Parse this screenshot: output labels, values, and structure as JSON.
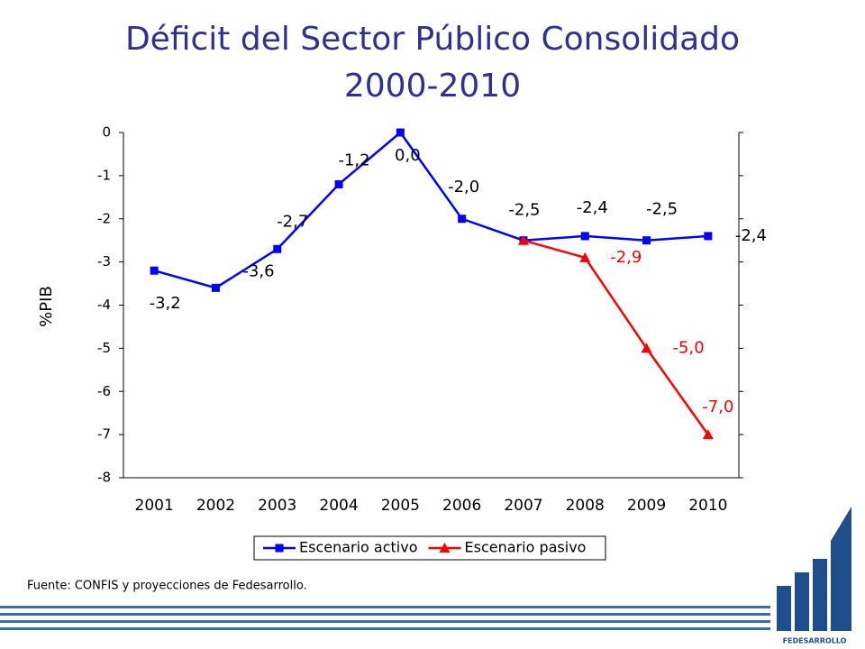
{
  "chart_data": {
    "type": "line",
    "title": "Déficit del Sector Público Consolidado",
    "subtitle": "2000-2010",
    "y_label": "%PIB",
    "categories": [
      "2001",
      "2002",
      "2003",
      "2004",
      "2005",
      "2006",
      "2007",
      "2008",
      "2009",
      "2010"
    ],
    "series": [
      {
        "name": "Escenario activo",
        "color": "#0000ff",
        "marker": "square",
        "values": [
          -3.2,
          -3.6,
          -2.7,
          -1.2,
          0.0,
          -2.0,
          -2.5,
          -2.4,
          -2.5,
          -2.4
        ],
        "value_labels": [
          "-3,2",
          "-3,6",
          "-2,7",
          "-1,2",
          "0,0",
          "-2,0",
          "-2,5",
          "-2,4",
          "-2,5",
          "-2,4"
        ]
      },
      {
        "name": "Escenario pasivo",
        "color": "#ff0000",
        "marker": "triangle",
        "values": [
          null,
          null,
          null,
          null,
          null,
          null,
          -2.5,
          -2.9,
          -5.0,
          -7.0
        ],
        "value_labels": [
          null,
          null,
          null,
          null,
          null,
          null,
          null,
          "-2,9",
          "-5,0",
          "-7,0"
        ]
      }
    ],
    "ylim": [
      -8,
      0
    ],
    "yticks": [
      0,
      -1,
      -2,
      -3,
      -4,
      -5,
      -6,
      -7,
      -8
    ],
    "grid": false,
    "legend": "bottom",
    "source": "Fuente: CONFIS y proyecciones de Fedesarrollo.",
    "logo": "FEDESARROLLO"
  }
}
